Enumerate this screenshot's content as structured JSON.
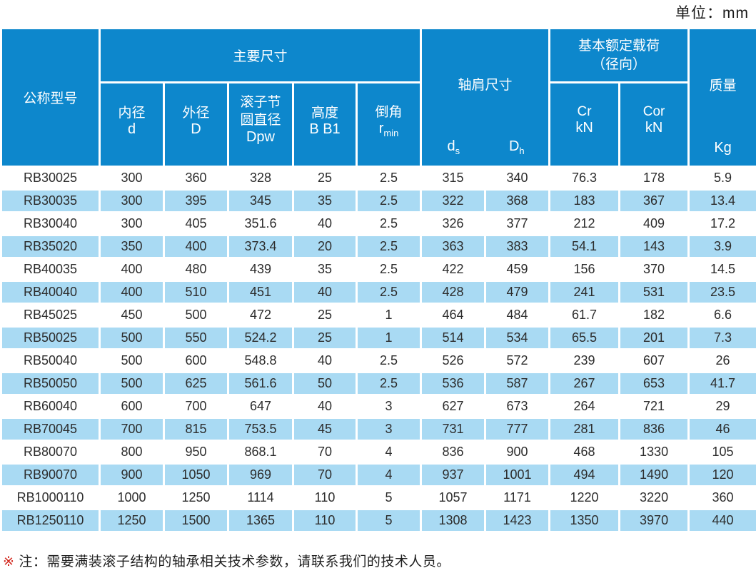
{
  "unit_label": "单位：mm",
  "table": {
    "headers": {
      "model": "公称型号",
      "main_dims": "主要尺寸",
      "shoulder": {
        "label": "轴肩尺寸",
        "sym1_main": "d",
        "sym1_sub": "s",
        "sym2_main": "D",
        "sym2_sub": "h"
      },
      "load": {
        "label_line1": "基本额定载荷",
        "label_line2": "（径向）",
        "cr": "Cr",
        "cor": "Cor",
        "cr_unit": "kN",
        "cor_unit": "kN"
      },
      "mass": {
        "label": "质量",
        "unit": "Kg"
      },
      "inner": {
        "label": "内径",
        "sym": "d"
      },
      "outer": {
        "label": "外径",
        "sym": "D"
      },
      "pitch": {
        "label": "滚子节圆直径",
        "sym": "Dpw"
      },
      "height": {
        "label": "高度",
        "sym": "B B1"
      },
      "chamfer": {
        "label": "倒角",
        "sym_main": "r",
        "sym_sub": "min"
      }
    },
    "rows": [
      [
        "RB30025",
        "300",
        "360",
        "328",
        "25",
        "2.5",
        "315",
        "340",
        "76.3",
        "178",
        "5.9"
      ],
      [
        "RB30035",
        "300",
        "395",
        "345",
        "35",
        "2.5",
        "322",
        "368",
        "183",
        "367",
        "13.4"
      ],
      [
        "RB30040",
        "300",
        "405",
        "351.6",
        "40",
        "2.5",
        "326",
        "377",
        "212",
        "409",
        "17.2"
      ],
      [
        "RB35020",
        "350",
        "400",
        "373.4",
        "20",
        "2.5",
        "363",
        "383",
        "54.1",
        "143",
        "3.9"
      ],
      [
        "RB40035",
        "400",
        "480",
        "439",
        "35",
        "2.5",
        "422",
        "459",
        "156",
        "370",
        "14.5"
      ],
      [
        "RB40040",
        "400",
        "510",
        "451",
        "40",
        "2.5",
        "428",
        "479",
        "241",
        "531",
        "23.5"
      ],
      [
        "RB45025",
        "450",
        "500",
        "472",
        "25",
        "1",
        "464",
        "484",
        "61.7",
        "182",
        "6.6"
      ],
      [
        "RB50025",
        "500",
        "550",
        "524.2",
        "25",
        "1",
        "514",
        "534",
        "65.5",
        "201",
        "7.3"
      ],
      [
        "RB50040",
        "500",
        "600",
        "548.8",
        "40",
        "2.5",
        "526",
        "572",
        "239",
        "607",
        "26"
      ],
      [
        "RB50050",
        "500",
        "625",
        "561.6",
        "50",
        "2.5",
        "536",
        "587",
        "267",
        "653",
        "41.7"
      ],
      [
        "RB60040",
        "600",
        "700",
        "647",
        "40",
        "3",
        "627",
        "673",
        "264",
        "721",
        "29"
      ],
      [
        "RB70045",
        "700",
        "815",
        "753.5",
        "45",
        "3",
        "731",
        "777",
        "281",
        "836",
        "46"
      ],
      [
        "RB80070",
        "800",
        "950",
        "868.1",
        "70",
        "4",
        "836",
        "900",
        "468",
        "1330",
        "105"
      ],
      [
        "RB90070",
        "900",
        "1050",
        "969",
        "70",
        "4",
        "937",
        "1001",
        "494",
        "1490",
        "120"
      ],
      [
        "RB1000110",
        "1000",
        "1250",
        "1114",
        "110",
        "5",
        "1057",
        "1171",
        "1220",
        "3220",
        "360"
      ],
      [
        "RB1250110",
        "1250",
        "1500",
        "1365",
        "110",
        "5",
        "1308",
        "1423",
        "1350",
        "3970",
        "440"
      ]
    ]
  },
  "note": {
    "marker": "※",
    "text": "注：需要满装滚子结构的轴承相关技术参数，请联系我们的技术人员。"
  },
  "colors": {
    "header_blue": "#0d87cc",
    "row_alt_blue": "#a9daf3",
    "note_marker_red": "#d2281e"
  }
}
